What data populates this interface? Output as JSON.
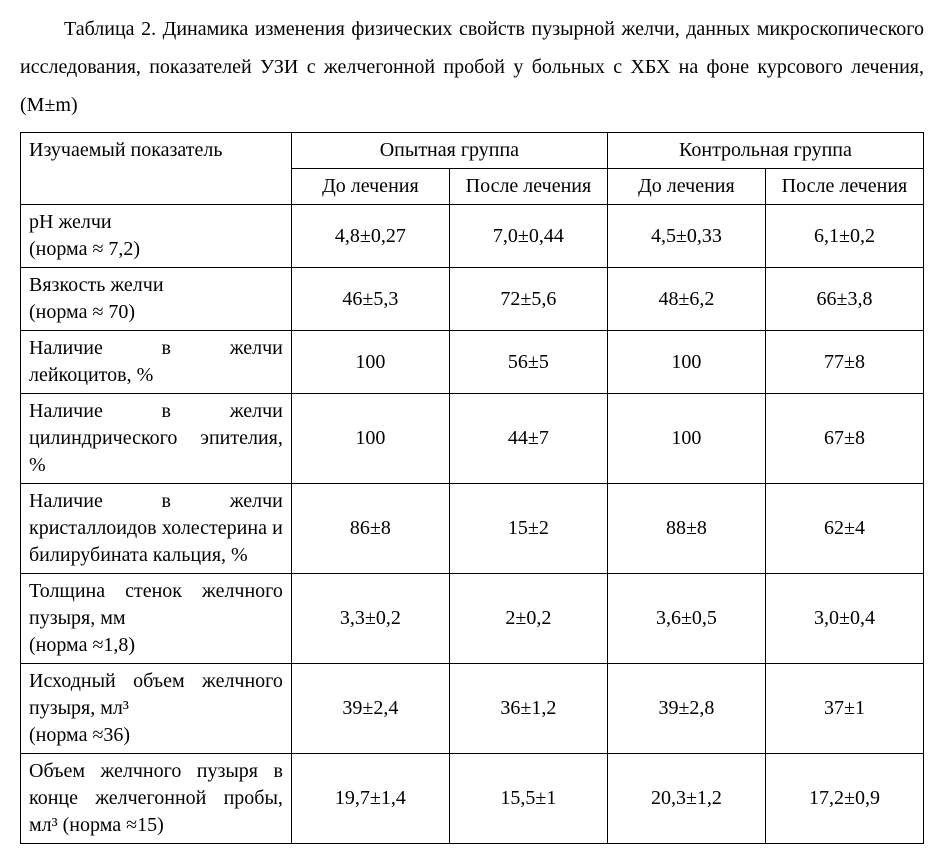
{
  "caption": "Таблица 2. Динамика изменения физических свойств пузырной желчи, данных микроскопического исследования, показателей УЗИ с желчегонной пробой у больных с ХБХ на фоне курсового лечения, (M±m)",
  "table": {
    "type": "table",
    "border_color": "#000000",
    "background_color": "#ffffff",
    "text_color": "#000000",
    "font_family": "Times New Roman",
    "header_fontsize_pt": 15,
    "cell_fontsize_pt": 15,
    "col_widths_pct": [
      30,
      17.5,
      17.5,
      17.5,
      17.5
    ],
    "header": {
      "param": "Изучаемый показатель",
      "group_a": "Опытная группа",
      "group_b": "Контрольная группа",
      "before": "До лечения",
      "after": "После лечения"
    },
    "rows": [
      {
        "param": "рН желчи\n(норма ≈ 7,2)",
        "a_before": "4,8±0,27",
        "a_after": "7,0±0,44",
        "b_before": "4,5±0,33",
        "b_after": "6,1±0,2"
      },
      {
        "param": "Вязкость желчи\n(норма ≈ 70)",
        "a_before": "46±5,3",
        "a_after": "72±5,6",
        "b_before": "48±6,2",
        "b_after": "66±3,8"
      },
      {
        "param": "Наличие в желчи лейкоцитов, %",
        "a_before": "100",
        "a_after": "56±5",
        "b_before": "100",
        "b_after": "77±8"
      },
      {
        "param": "Наличие в желчи цилиндрического эпителия, %",
        "a_before": "100",
        "a_after": "44±7",
        "b_before": "100",
        "b_after": "67±8"
      },
      {
        "param": "Наличие в желчи кристаллоидов холестерина и билирубината кальция, %",
        "a_before": "86±8",
        "a_after": "15±2",
        "b_before": "88±8",
        "b_after": "62±4"
      },
      {
        "param": "Толщина стенок желчного пузыря, мм\n(норма ≈1,8)",
        "a_before": "3,3±0,2",
        "a_after": "2±0,2",
        "b_before": "3,6±0,5",
        "b_after": "3,0±0,4"
      },
      {
        "param": "Исходный объем желчного пузыря, мл³\n(норма ≈36)",
        "a_before": "39±2,4",
        "a_after": "36±1,2",
        "b_before": "39±2,8",
        "b_after": "37±1"
      },
      {
        "param": "Объем желчного пузыря в конце желчегонной пробы, мл³ (норма ≈15)",
        "a_before": "19,7±1,4",
        "a_after": "15,5±1",
        "b_before": "20,3±1,2",
        "b_after": "17,2±0,9"
      }
    ]
  }
}
